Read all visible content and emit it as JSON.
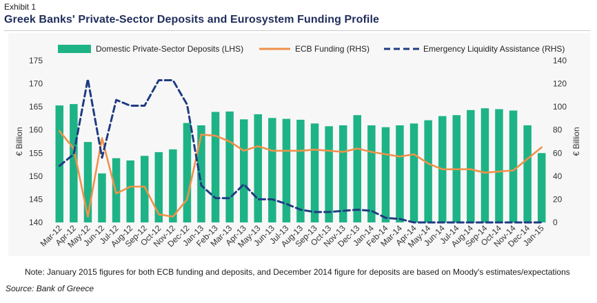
{
  "exhibit_label": "Exhibit 1",
  "note": "Note: January 2015 figures for both ECB funding and deposits, and December 2014 figure for deposits are based on Moody's estimates/expectations",
  "source": "Source: Bank of Greece",
  "colors": {
    "bars": "#1eb386",
    "ecb": "#f0914a",
    "ela": "#1f3b82",
    "title": "#1f2d5a"
  },
  "chart_data": {
    "type": "bar+line",
    "title": "Greek Banks' Private-Sector Deposits and Eurosystem Funding Profile",
    "ylabel_left": "€ Billion",
    "ylabel_right": "€ Billion",
    "ylim_left": [
      140,
      175
    ],
    "ylim_right": [
      0,
      140
    ],
    "yticks_left": [
      140,
      145,
      150,
      155,
      160,
      165,
      170,
      175
    ],
    "yticks_right": [
      0,
      20,
      40,
      60,
      80,
      100,
      120,
      140
    ],
    "categories": [
      "Mar-12",
      "Apr-12",
      "May-12",
      "Jun-12",
      "Jul-12",
      "Aug-12",
      "Sep-12",
      "Oct-12",
      "Nov-12",
      "Dec-12",
      "Jan-13",
      "Feb-13",
      "Mar-13",
      "Apr-13",
      "May-13",
      "Jun-13",
      "Jul-13",
      "Aug-13",
      "Sep-13",
      "Oct-13",
      "Nov-13",
      "Dec-13",
      "Jan-14",
      "Feb-14",
      "Mar-14",
      "Apr-14",
      "May-14",
      "Jun-14",
      "Jul-14",
      "Aug-14",
      "Sep-14",
      "Oct-14",
      "Nov-14",
      "Dec-14",
      "Jan-15"
    ],
    "legend": [
      "Domestic Private-Sector Deposits (LHS)",
      "ECB Funding (RHS)",
      "Emergency Liquidity Assistance (RHS)"
    ],
    "series": [
      {
        "name": "Domestic Private-Sector Deposits (LHS)",
        "type": "bar",
        "axis": "left",
        "values": [
          165.3,
          165.6,
          157.4,
          150.6,
          153.9,
          153.4,
          154.4,
          155.2,
          155.8,
          161.5,
          161.0,
          163.9,
          164.0,
          162.3,
          163.4,
          162.6,
          162.4,
          162.2,
          161.4,
          160.8,
          161.0,
          163.2,
          161.0,
          160.6,
          161.0,
          161.4,
          162.1,
          163.0,
          163.2,
          164.3,
          164.7,
          164.5,
          164.2,
          161.0,
          155.0
        ]
      },
      {
        "name": "ECB Funding (RHS)",
        "type": "line",
        "axis": "right",
        "values": [
          79,
          64,
          5,
          73,
          25,
          31,
          31,
          7,
          5,
          20,
          76,
          75,
          70,
          62,
          66,
          62,
          62,
          62,
          63,
          62,
          61,
          64,
          61,
          59,
          57,
          59,
          51,
          46,
          46,
          46,
          43,
          44,
          45,
          55,
          65
        ]
      },
      {
        "name": "Emergency Liquidity Assistance (RHS)",
        "type": "line",
        "axis": "right",
        "dashed": true,
        "values": [
          49,
          59,
          124,
          56,
          106,
          101,
          101,
          123,
          123,
          102,
          32,
          21,
          21,
          33,
          20,
          20,
          16,
          11,
          9,
          9,
          10,
          11,
          10,
          4,
          3,
          0,
          0,
          0,
          0,
          0,
          0,
          0,
          0,
          0,
          0
        ]
      }
    ]
  }
}
